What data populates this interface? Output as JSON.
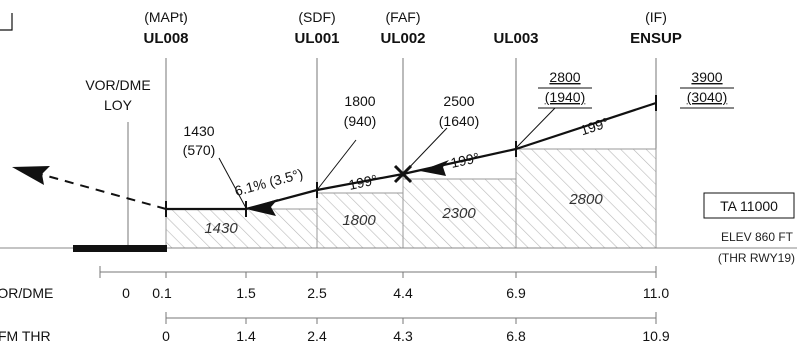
{
  "fixes": [
    {
      "type": "(MAPt)",
      "name": "UL008"
    },
    {
      "type": "(SDF)",
      "name": "UL001"
    },
    {
      "type": "(FAF)",
      "name": "UL002"
    },
    {
      "type": "",
      "name": "UL003"
    },
    {
      "type": "(IF)",
      "name": "ENSUP"
    }
  ],
  "navaid": {
    "line1": "VOR/DME",
    "line2": "LOY"
  },
  "altitudes": [
    {
      "alt": "1430",
      "height": "(570)"
    },
    {
      "alt": "1800",
      "height": "(940)"
    },
    {
      "alt": "2500",
      "height": "(1640)"
    },
    {
      "alt": "2800",
      "height": "(1940)"
    },
    {
      "alt": "3900",
      "height": "(3040)"
    }
  ],
  "gradient_label": "6.1% (3.5°)",
  "tracks": [
    "199°",
    "199°",
    "199°"
  ],
  "obstacle_clearances": [
    "1430",
    "1800",
    "2300",
    "2800"
  ],
  "ta_label": "TA 11000",
  "elev_label": "ELEV 860 FT",
  "thr_label": "(THR RWY19)",
  "vor_dme_scale": {
    "label": "VOR/DME",
    "ticks": [
      "0",
      "0.1",
      "1.5",
      "2.5",
      "4.4",
      "6.9",
      "11.0"
    ]
  },
  "fm_thr_scale": {
    "label": "FM THR",
    "ticks": [
      "0",
      "1.4",
      "2.4",
      "4.3",
      "6.8",
      "10.9"
    ]
  }
}
